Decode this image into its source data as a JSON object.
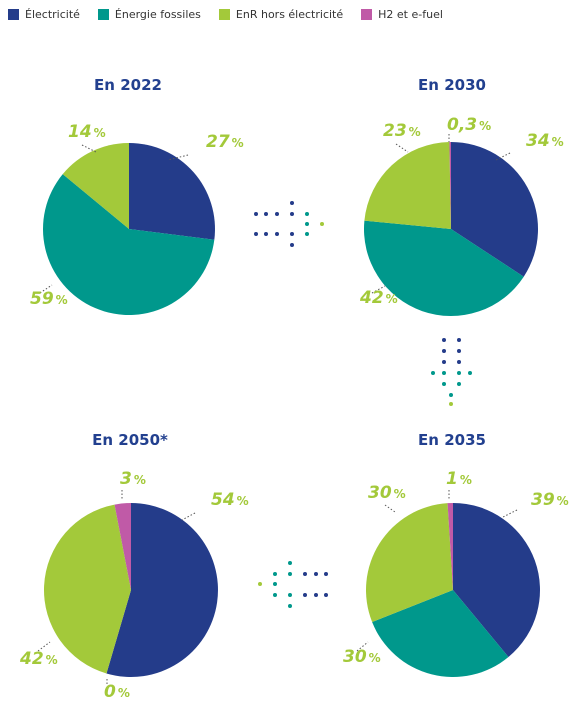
{
  "legend": [
    {
      "label": "Électricité",
      "color": "#243c8a"
    },
    {
      "label": "Énergie fossiles",
      "color": "#00988c"
    },
    {
      "label": "EnR hors électricité",
      "color": "#a3c93a"
    },
    {
      "label": "H2 et e-fuel",
      "color": "#c05aa7"
    }
  ],
  "pct_color": "#a3c93a",
  "chart_data": [
    {
      "type": "pie",
      "title": "En 2022",
      "labels": [
        "Électricité",
        "Énergie fossiles",
        "EnR hors électricité"
      ],
      "values": [
        27,
        59,
        14
      ],
      "value_labels": [
        "27",
        "59",
        "14"
      ]
    },
    {
      "type": "pie",
      "title": "En 2030",
      "labels": [
        "Électricité",
        "Énergie fossiles",
        "EnR hors électricité",
        "H2 et e-fuel"
      ],
      "values": [
        34,
        42,
        23,
        0.3
      ],
      "value_labels": [
        "34",
        "42",
        "23",
        "0,3"
      ]
    },
    {
      "type": "pie",
      "title": "En 2035",
      "labels": [
        "Électricité",
        "Énergie fossiles",
        "EnR hors électricité",
        "H2 et e-fuel"
      ],
      "values": [
        39,
        30,
        30,
        1
      ],
      "value_labels": [
        "39",
        "30",
        "30",
        "1"
      ]
    },
    {
      "type": "pie",
      "title": "En 2050*",
      "labels": [
        "Électricité",
        "Énergie fossiles",
        "EnR hors électricité",
        "H2 et e-fuel"
      ],
      "values": [
        54,
        0,
        42,
        3
      ],
      "value_labels": [
        "54",
        "0",
        "42",
        "3"
      ]
    }
  ]
}
